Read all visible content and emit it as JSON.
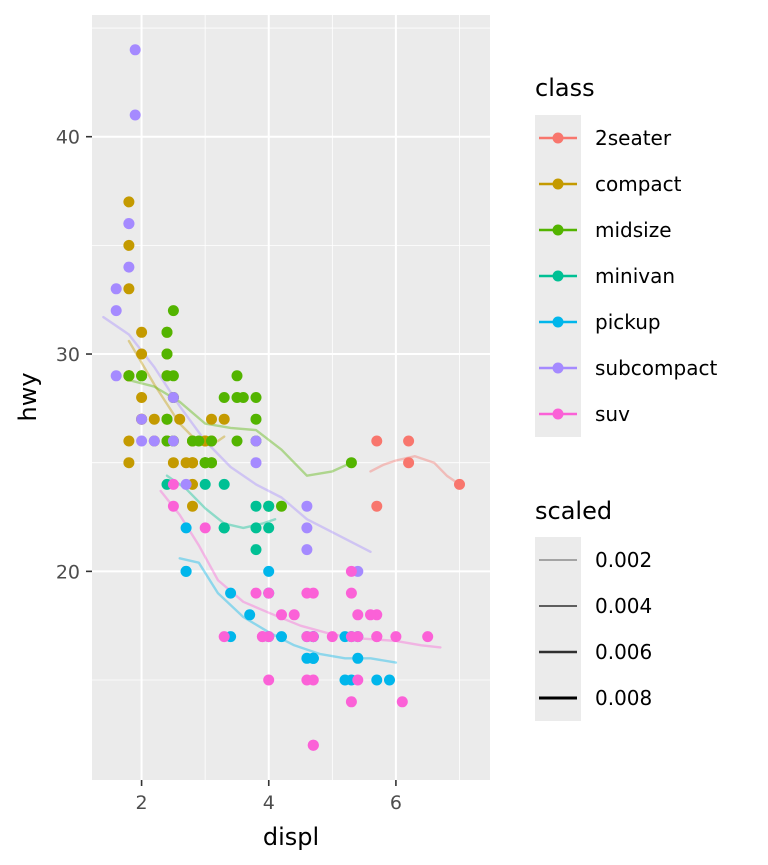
{
  "chart_data": {
    "type": "scatter",
    "xlabel": "displ",
    "ylabel": "hwy",
    "xlim": [
      1.22,
      7.48
    ],
    "ylim": [
      10.4,
      45.6
    ],
    "x_ticks": [
      2,
      4,
      6
    ],
    "y_ticks": [
      20,
      30,
      40
    ],
    "grid": true,
    "legend_position": "right",
    "legend": {
      "color_title": "class",
      "linewidth_title": "scaled",
      "linewidth_labels": [
        "0.002",
        "0.004",
        "0.006",
        "0.008"
      ]
    },
    "series": [
      {
        "name": "2seater",
        "color": "#F8766D",
        "points": [
          [
            5.7,
            26
          ],
          [
            5.7,
            23
          ],
          [
            6.2,
            26
          ],
          [
            6.2,
            25
          ],
          [
            7.0,
            24
          ]
        ],
        "smooth": [
          [
            5.6,
            24.6
          ],
          [
            5.8,
            24.9
          ],
          [
            6.0,
            25.1
          ],
          [
            6.3,
            25.3
          ],
          [
            6.6,
            25.0
          ],
          [
            6.8,
            24.4
          ],
          [
            7.0,
            24.0
          ]
        ]
      },
      {
        "name": "compact",
        "color": "#C49A00",
        "points": [
          [
            1.8,
            29
          ],
          [
            1.8,
            29
          ],
          [
            2.0,
            31
          ],
          [
            2.0,
            30
          ],
          [
            2.8,
            26
          ],
          [
            2.8,
            26
          ],
          [
            3.1,
            27
          ],
          [
            1.8,
            26
          ],
          [
            1.8,
            25
          ],
          [
            2.0,
            28
          ],
          [
            2.0,
            27
          ],
          [
            2.8,
            25
          ],
          [
            2.8,
            25
          ],
          [
            3.1,
            25
          ],
          [
            2.0,
            27
          ],
          [
            2.4,
            30
          ],
          [
            2.4,
            31
          ],
          [
            3.1,
            26
          ],
          [
            2.2,
            26
          ],
          [
            2.2,
            27
          ],
          [
            2.4,
            27
          ],
          [
            2.4,
            29
          ],
          [
            3.0,
            26
          ],
          [
            3.0,
            26
          ],
          [
            3.3,
            27
          ],
          [
            1.8,
            29
          ],
          [
            1.8,
            37
          ],
          [
            1.8,
            35
          ],
          [
            1.8,
            33
          ],
          [
            2.5,
            25
          ],
          [
            2.5,
            28
          ],
          [
            2.8,
            23
          ],
          [
            2.8,
            24
          ],
          [
            2.5,
            26
          ],
          [
            2.6,
            27
          ],
          [
            2.7,
            25
          ],
          [
            2.8,
            25
          ]
        ],
        "smooth": [
          [
            1.8,
            30.6
          ],
          [
            2.0,
            29.6
          ],
          [
            2.2,
            28.6
          ],
          [
            2.4,
            27.7
          ],
          [
            2.6,
            26.8
          ],
          [
            2.8,
            26.2
          ],
          [
            3.0,
            25.8
          ],
          [
            3.2,
            26.0
          ],
          [
            3.3,
            26.2
          ]
        ]
      },
      {
        "name": "midsize",
        "color": "#53B400",
        "points": [
          [
            2.4,
            26
          ],
          [
            2.4,
            27
          ],
          [
            2.8,
            26
          ],
          [
            3.1,
            26
          ],
          [
            3.5,
            29
          ],
          [
            3.6,
            28
          ],
          [
            3.8,
            26
          ],
          [
            3.8,
            28
          ],
          [
            4.0,
            23
          ],
          [
            2.4,
            26
          ],
          [
            2.5,
            29
          ],
          [
            2.5,
            32
          ],
          [
            3.3,
            28
          ],
          [
            3.5,
            26
          ],
          [
            1.8,
            29
          ],
          [
            2.0,
            29
          ],
          [
            2.0,
            29
          ],
          [
            2.4,
            31
          ],
          [
            2.4,
            30
          ],
          [
            3.0,
            25
          ],
          [
            3.0,
            25
          ],
          [
            2.4,
            29
          ],
          [
            2.5,
            28
          ],
          [
            3.0,
            25
          ],
          [
            3.5,
            28
          ],
          [
            3.8,
            27
          ],
          [
            4.2,
            23
          ],
          [
            5.3,
            25
          ],
          [
            2.5,
            26
          ],
          [
            2.9,
            26
          ],
          [
            3.1,
            25
          ]
        ],
        "smooth": [
          [
            1.8,
            28.8
          ],
          [
            2.2,
            28.5
          ],
          [
            2.6,
            27.8
          ],
          [
            3.0,
            26.8
          ],
          [
            3.4,
            26.6
          ],
          [
            3.8,
            26.5
          ],
          [
            4.2,
            25.6
          ],
          [
            4.6,
            24.4
          ],
          [
            5.0,
            24.6
          ],
          [
            5.3,
            25.0
          ]
        ]
      },
      {
        "name": "minivan",
        "color": "#00C094",
        "points": [
          [
            2.4,
            24
          ],
          [
            3.0,
            24
          ],
          [
            3.3,
            22
          ],
          [
            3.3,
            22
          ],
          [
            3.3,
            24
          ],
          [
            3.8,
            22
          ],
          [
            3.8,
            21
          ],
          [
            3.8,
            23
          ],
          [
            4.0,
            23
          ],
          [
            4.0,
            22
          ]
        ],
        "smooth": [
          [
            2.4,
            24.4
          ],
          [
            2.7,
            23.8
          ],
          [
            3.0,
            22.9
          ],
          [
            3.3,
            22.2
          ],
          [
            3.6,
            22.0
          ],
          [
            3.9,
            22.2
          ],
          [
            4.1,
            22.4
          ]
        ]
      },
      {
        "name": "pickup",
        "color": "#00B6EB",
        "points": [
          [
            2.7,
            20
          ],
          [
            2.7,
            20
          ],
          [
            2.7,
            22
          ],
          [
            3.4,
            17
          ],
          [
            3.4,
            19
          ],
          [
            4.0,
            20
          ],
          [
            4.0,
            17
          ],
          [
            4.2,
            17
          ],
          [
            4.6,
            16
          ],
          [
            4.6,
            17
          ],
          [
            4.7,
            17
          ],
          [
            4.7,
            16
          ],
          [
            4.7,
            16
          ],
          [
            5.2,
            15
          ],
          [
            5.2,
            17
          ],
          [
            5.3,
            15
          ],
          [
            5.3,
            17
          ],
          [
            5.4,
            17
          ],
          [
            5.4,
            16
          ],
          [
            5.7,
            15
          ],
          [
            5.9,
            15
          ],
          [
            3.7,
            18
          ],
          [
            4.0,
            19
          ],
          [
            4.7,
            16
          ],
          [
            4.7,
            17
          ]
        ],
        "smooth": [
          [
            2.6,
            20.6
          ],
          [
            2.9,
            20.4
          ],
          [
            3.2,
            19.0
          ],
          [
            3.6,
            17.9
          ],
          [
            4.0,
            17.2
          ],
          [
            4.4,
            16.6
          ],
          [
            4.8,
            16.2
          ],
          [
            5.2,
            16.0
          ],
          [
            5.6,
            16.0
          ],
          [
            6.0,
            15.8
          ]
        ]
      },
      {
        "name": "subcompact",
        "color": "#A58AFF",
        "points": [
          [
            1.6,
            33
          ],
          [
            1.6,
            32
          ],
          [
            1.6,
            29
          ],
          [
            1.8,
            34
          ],
          [
            1.8,
            36
          ],
          [
            1.8,
            36
          ],
          [
            1.9,
            44
          ],
          [
            1.9,
            41
          ],
          [
            2.0,
            26
          ],
          [
            2.0,
            27
          ],
          [
            2.2,
            26
          ],
          [
            2.5,
            26
          ],
          [
            2.5,
            28
          ],
          [
            2.7,
            24
          ],
          [
            3.8,
            25
          ],
          [
            3.8,
            26
          ],
          [
            4.6,
            23
          ],
          [
            4.6,
            22
          ],
          [
            4.6,
            21
          ],
          [
            5.4,
            20
          ]
        ],
        "smooth": [
          [
            1.4,
            31.7
          ],
          [
            1.8,
            30.9
          ],
          [
            2.2,
            29.4
          ],
          [
            2.6,
            27.6
          ],
          [
            3.0,
            26.0
          ],
          [
            3.4,
            24.8
          ],
          [
            3.8,
            24.0
          ],
          [
            4.2,
            23.4
          ],
          [
            4.6,
            22.4
          ],
          [
            5.0,
            21.8
          ],
          [
            5.6,
            20.9
          ]
        ]
      },
      {
        "name": "suv",
        "color": "#FB61D7",
        "points": [
          [
            2.5,
            23
          ],
          [
            2.5,
            24
          ],
          [
            3.0,
            22
          ],
          [
            3.3,
            17
          ],
          [
            3.8,
            19
          ],
          [
            3.9,
            17
          ],
          [
            4.0,
            17
          ],
          [
            4.0,
            19
          ],
          [
            4.0,
            15
          ],
          [
            4.2,
            18
          ],
          [
            4.4,
            18
          ],
          [
            4.6,
            19
          ],
          [
            4.6,
            17
          ],
          [
            4.7,
            12
          ],
          [
            4.7,
            12
          ],
          [
            4.7,
            17
          ],
          [
            4.7,
            19
          ],
          [
            4.7,
            15
          ],
          [
            5.0,
            17
          ],
          [
            5.3,
            20
          ],
          [
            5.3,
            19
          ],
          [
            5.3,
            14
          ],
          [
            5.4,
            17
          ],
          [
            5.4,
            15
          ],
          [
            5.4,
            18
          ],
          [
            5.7,
            18
          ],
          [
            5.7,
            17
          ],
          [
            6.1,
            14
          ],
          [
            6.0,
            17
          ],
          [
            6.5,
            17
          ],
          [
            5.6,
            18
          ],
          [
            5.3,
            17
          ],
          [
            4.6,
            15
          ],
          [
            3.9,
            17
          ],
          [
            5.7,
            17
          ]
        ],
        "smooth": [
          [
            2.3,
            23.7
          ],
          [
            2.6,
            22.6
          ],
          [
            2.9,
            21.2
          ],
          [
            3.2,
            19.6
          ],
          [
            3.6,
            18.6
          ],
          [
            4.0,
            18.1
          ],
          [
            4.5,
            17.5
          ],
          [
            5.0,
            17.1
          ],
          [
            5.5,
            16.9
          ],
          [
            6.0,
            16.8
          ],
          [
            6.4,
            16.6
          ],
          [
            6.7,
            16.5
          ]
        ]
      }
    ]
  }
}
